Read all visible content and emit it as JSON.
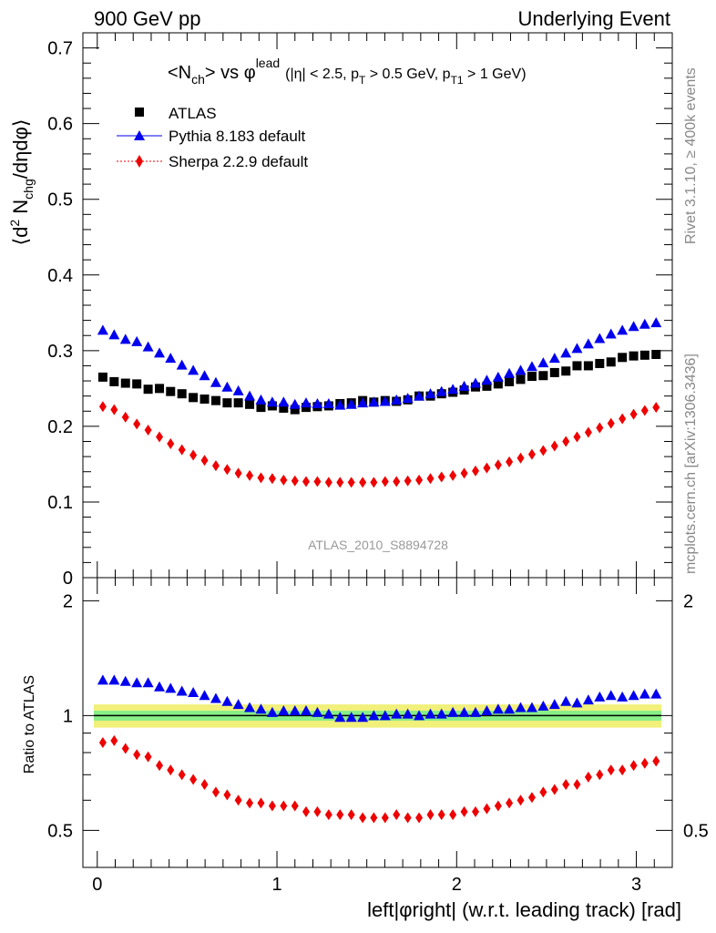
{
  "header": {
    "left": "900 GeV pp",
    "right": "Underlying Event"
  },
  "side_labels": {
    "rivet": "Rivet 3.1.10, ≥ 400k events",
    "mcplots": "mcplots.cern.ch [arXiv:1306.3436]"
  },
  "colors": {
    "atlas": "#000000",
    "pythia": "#0000ee",
    "sherpa": "#ee0000",
    "band_inner": "#88ee88",
    "band_outer": "#f0f07a"
  },
  "chart_data": [
    {
      "type": "scatter",
      "panel": "main",
      "title_parts": {
        "prefix": "<N",
        "nsub": "ch",
        "mid": "> vs φ",
        "sup": "lead",
        "cut1": "(|η| < 2.5, p",
        "cut1sub": "T",
        "cut2": " > 0.5 GeV, p",
        "cut2sub": "T1",
        "cut3": " > 1 GeV)"
      },
      "ylabel_parts": {
        "open": "⟨d",
        "sup": "2",
        "mid": " N",
        "sub": "chg",
        "end": "/dηdφ⟩"
      },
      "analysis_label": "ATLAS_2010_S8894728",
      "ylim": [
        0,
        0.72
      ],
      "xlim": [
        -0.08,
        3.2
      ],
      "yticks": [
        "0",
        "0.1",
        "0.2",
        "0.3",
        "0.4",
        "0.5",
        "0.6",
        "0.7"
      ],
      "legend": [
        "ATLAS",
        "Pythia 8.183 default",
        "Sherpa 2.2.9 default"
      ],
      "x": [
        0.031,
        0.094,
        0.157,
        0.22,
        0.283,
        0.346,
        0.408,
        0.471,
        0.534,
        0.597,
        0.66,
        0.723,
        0.785,
        0.848,
        0.911,
        0.974,
        1.037,
        1.1,
        1.162,
        1.225,
        1.288,
        1.351,
        1.414,
        1.477,
        1.539,
        1.602,
        1.665,
        1.728,
        1.791,
        1.854,
        1.916,
        1.979,
        2.042,
        2.105,
        2.168,
        2.231,
        2.293,
        2.356,
        2.419,
        2.482,
        2.545,
        2.608,
        2.67,
        2.733,
        2.796,
        2.859,
        2.922,
        2.985,
        3.047,
        3.11
      ],
      "series": [
        {
          "name": "ATLAS",
          "marker": "square",
          "values": [
            0.265,
            0.259,
            0.257,
            0.256,
            0.249,
            0.25,
            0.246,
            0.243,
            0.238,
            0.236,
            0.234,
            0.231,
            0.231,
            0.229,
            0.225,
            0.227,
            0.224,
            0.222,
            0.225,
            0.226,
            0.227,
            0.23,
            0.231,
            0.234,
            0.232,
            0.234,
            0.233,
            0.235,
            0.24,
            0.24,
            0.243,
            0.245,
            0.248,
            0.252,
            0.253,
            0.256,
            0.259,
            0.262,
            0.266,
            0.267,
            0.271,
            0.273,
            0.28,
            0.28,
            0.283,
            0.285,
            0.291,
            0.293,
            0.294,
            0.295
          ]
        },
        {
          "name": "Pythia 8.183 default",
          "marker": "triangle",
          "values": [
            0.327,
            0.321,
            0.315,
            0.312,
            0.305,
            0.297,
            0.29,
            0.281,
            0.274,
            0.267,
            0.258,
            0.252,
            0.247,
            0.24,
            0.235,
            0.232,
            0.232,
            0.229,
            0.231,
            0.23,
            0.23,
            0.228,
            0.229,
            0.231,
            0.232,
            0.233,
            0.235,
            0.237,
            0.24,
            0.243,
            0.246,
            0.249,
            0.253,
            0.257,
            0.261,
            0.265,
            0.27,
            0.274,
            0.279,
            0.284,
            0.29,
            0.297,
            0.303,
            0.309,
            0.316,
            0.322,
            0.327,
            0.332,
            0.335,
            0.337
          ]
        },
        {
          "name": "Sherpa 2.2.9 default",
          "marker": "diamond",
          "values": [
            0.226,
            0.222,
            0.212,
            0.203,
            0.195,
            0.186,
            0.177,
            0.169,
            0.162,
            0.155,
            0.148,
            0.143,
            0.138,
            0.135,
            0.132,
            0.131,
            0.129,
            0.128,
            0.127,
            0.127,
            0.126,
            0.126,
            0.126,
            0.126,
            0.126,
            0.127,
            0.127,
            0.128,
            0.129,
            0.131,
            0.133,
            0.135,
            0.138,
            0.141,
            0.145,
            0.149,
            0.153,
            0.158,
            0.163,
            0.168,
            0.174,
            0.18,
            0.186,
            0.192,
            0.198,
            0.204,
            0.21,
            0.216,
            0.221,
            0.225
          ]
        }
      ]
    },
    {
      "type": "scatter",
      "panel": "ratio",
      "ylabel": "Ratio to ATLAS",
      "ylim": [
        0.4,
        2.3
      ],
      "xlim": [
        -0.08,
        3.2
      ],
      "xlabel": "left|φright| (w.r.t. leading track) [rad]",
      "xticks": [
        "0",
        "1",
        "2",
        "3"
      ],
      "yticks": [
        "0.5",
        "1",
        "2"
      ],
      "band_inner": 0.03,
      "band_outer": 0.07,
      "series": [
        {
          "name": "Pythia 8.183 default",
          "marker": "triangle",
          "values": [
            1.24,
            1.24,
            1.23,
            1.22,
            1.22,
            1.19,
            1.18,
            1.16,
            1.15,
            1.13,
            1.11,
            1.09,
            1.07,
            1.05,
            1.04,
            1.02,
            1.03,
            1.03,
            1.03,
            1.02,
            1.01,
            0.99,
            0.99,
            0.99,
            1.0,
            1.0,
            1.01,
            1.01,
            1.0,
            1.01,
            1.01,
            1.02,
            1.02,
            1.02,
            1.03,
            1.04,
            1.04,
            1.05,
            1.05,
            1.06,
            1.07,
            1.09,
            1.08,
            1.1,
            1.12,
            1.13,
            1.12,
            1.13,
            1.14,
            1.14
          ]
        },
        {
          "name": "Sherpa 2.2.9 default",
          "marker": "diamond",
          "values": [
            0.85,
            0.86,
            0.82,
            0.79,
            0.78,
            0.74,
            0.72,
            0.7,
            0.68,
            0.66,
            0.63,
            0.62,
            0.6,
            0.59,
            0.59,
            0.58,
            0.58,
            0.58,
            0.56,
            0.56,
            0.55,
            0.55,
            0.55,
            0.54,
            0.54,
            0.54,
            0.55,
            0.54,
            0.54,
            0.55,
            0.55,
            0.55,
            0.56,
            0.56,
            0.57,
            0.58,
            0.59,
            0.6,
            0.61,
            0.63,
            0.64,
            0.66,
            0.66,
            0.69,
            0.7,
            0.72,
            0.72,
            0.74,
            0.75,
            0.76
          ]
        }
      ]
    }
  ]
}
